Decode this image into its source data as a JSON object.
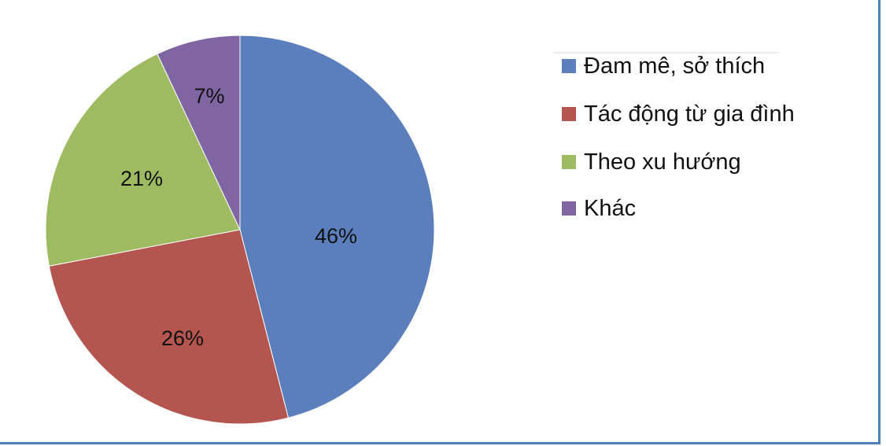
{
  "chart_data": {
    "type": "pie",
    "title": "",
    "start_angle_deg": 0,
    "direction": "clockwise",
    "legend_position": "right",
    "slices": [
      {
        "label": "Đam mê, sở thích",
        "value": 46,
        "display": "46%",
        "color": "#5b7fbd"
      },
      {
        "label": "Tác động từ gia đình",
        "value": 26,
        "display": "26%",
        "color": "#b55550"
      },
      {
        "label": "Theo xu hướng",
        "value": 21,
        "display": "21%",
        "color": "#9fbb61"
      },
      {
        "label": "Khác",
        "value": 7,
        "display": "7%",
        "color": "#7f66a3"
      }
    ]
  }
}
